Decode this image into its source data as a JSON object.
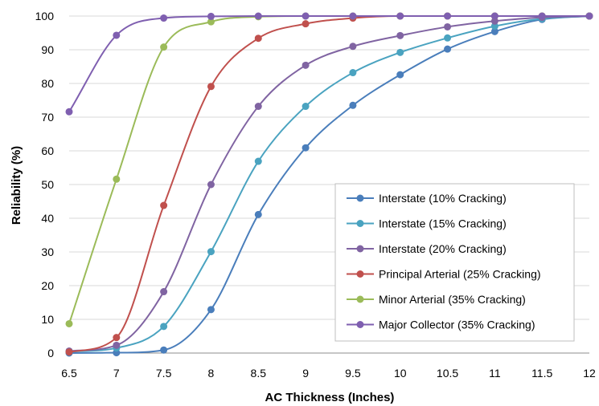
{
  "chart_data": {
    "type": "line",
    "title": "",
    "xlabel": "AC Thickness (Inches)",
    "ylabel": "Reliability (%)",
    "xlim": [
      6.5,
      12
    ],
    "ylim": [
      0,
      100
    ],
    "x_ticks": [
      "6.5",
      "7",
      "7.5",
      "8",
      "8.5",
      "9",
      "9.5",
      "10",
      "10.5",
      "11",
      "11.5",
      "12"
    ],
    "y_ticks": [
      "0",
      "10",
      "20",
      "30",
      "40",
      "50",
      "60",
      "70",
      "80",
      "90",
      "100"
    ],
    "grid": "horizontal",
    "legend_position": "bottom-right",
    "x": [
      6.5,
      7,
      7.5,
      8,
      8.5,
      9,
      9.5,
      10,
      10.5,
      11,
      11.5,
      12
    ],
    "series": [
      {
        "name": "Interstate (10% Cracking)",
        "color": "#4a7ebb",
        "values": [
          0.0,
          0.1,
          0.9,
          12.9,
          41.1,
          60.9,
          73.5,
          82.6,
          90.2,
          95.4,
          99.0,
          100.0
        ]
      },
      {
        "name": "Interstate (15% Cracking)",
        "color": "#4aa3c0",
        "values": [
          0.4,
          1.5,
          7.9,
          30.1,
          56.9,
          73.2,
          83.2,
          89.2,
          93.5,
          97.0,
          99.2,
          100.0
        ]
      },
      {
        "name": "Interstate (20% Cracking)",
        "color": "#8064a2",
        "values": [
          0.6,
          2.3,
          18.2,
          50.0,
          73.2,
          85.4,
          91.0,
          94.2,
          96.8,
          98.5,
          99.6,
          100.0
        ]
      },
      {
        "name": "Principal Arterial (25% Cracking)",
        "color": "#c0504d",
        "values": [
          0.3,
          4.6,
          43.8,
          79.1,
          93.4,
          97.7,
          99.4,
          100.0,
          100.0,
          100.0,
          100.0,
          100.0
        ]
      },
      {
        "name": "Minor Arterial (35% Cracking)",
        "color": "#9bbb59",
        "values": [
          8.7,
          51.6,
          90.8,
          98.3,
          99.8,
          100.0,
          100.0,
          100.0,
          100.0,
          100.0,
          100.0,
          100.0
        ]
      },
      {
        "name": "Major Collector (35% Cracking)",
        "color": "#7f5fb0",
        "values": [
          71.6,
          94.3,
          99.4,
          99.9,
          100.0,
          100.0,
          100.0,
          100.0,
          100.0,
          100.0,
          100.0,
          100.0
        ]
      }
    ]
  }
}
